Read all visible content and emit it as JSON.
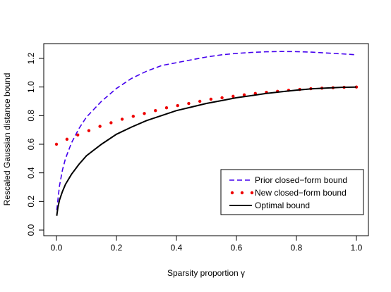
{
  "chart_data": {
    "type": "line",
    "title": "",
    "xlabel": "Sparsity proportion γ",
    "ylabel": "Rescaled Gaussian distance bound",
    "xlim": [
      0,
      1
    ],
    "ylim": [
      0,
      1.25
    ],
    "x_ticks": [
      "0.0",
      "0.2",
      "0.4",
      "0.6",
      "0.8",
      "1.0"
    ],
    "y_ticks": [
      "0.0",
      "0.2",
      "0.4",
      "0.6",
      "0.8",
      "1.0",
      "1.2"
    ],
    "grid": false,
    "legend_position": "bottom-right",
    "series": [
      {
        "name": "Prior closed−form bound",
        "style": "dashed",
        "color": "#4400ee",
        "x": [
          0.001,
          0.01,
          0.02,
          0.03,
          0.05,
          0.075,
          0.1,
          0.15,
          0.2,
          0.25,
          0.3,
          0.35,
          0.4,
          0.45,
          0.5,
          0.55,
          0.6,
          0.65,
          0.7,
          0.75,
          0.8,
          0.85,
          0.9,
          0.95,
          1.0
        ],
        "y": [
          0.14,
          0.31,
          0.42,
          0.5,
          0.61,
          0.71,
          0.79,
          0.9,
          0.99,
          1.06,
          1.11,
          1.15,
          1.17,
          1.19,
          1.21,
          1.225,
          1.235,
          1.242,
          1.246,
          1.248,
          1.247,
          1.244,
          1.238,
          1.232,
          1.225
        ]
      },
      {
        "name": "New closed−form bound",
        "style": "dotted",
        "color": "#ee0000",
        "x": [
          0.0,
          0.035,
          0.071,
          0.108,
          0.145,
          0.182,
          0.219,
          0.256,
          0.293,
          0.33,
          0.367,
          0.404,
          0.441,
          0.478,
          0.515,
          0.552,
          0.589,
          0.626,
          0.663,
          0.7,
          0.737,
          0.774,
          0.811,
          0.848,
          0.885,
          0.922,
          0.959,
          1.0
        ],
        "y": [
          0.6,
          0.635,
          0.665,
          0.695,
          0.725,
          0.75,
          0.775,
          0.795,
          0.815,
          0.835,
          0.855,
          0.87,
          0.885,
          0.9,
          0.915,
          0.925,
          0.935,
          0.945,
          0.955,
          0.963,
          0.97,
          0.977,
          0.983,
          0.988,
          0.992,
          0.995,
          0.998,
          1.0
        ]
      },
      {
        "name": "Optimal bound",
        "style": "solid",
        "color": "#000000",
        "x": [
          0.001,
          0.005,
          0.01,
          0.02,
          0.03,
          0.05,
          0.075,
          0.1,
          0.15,
          0.2,
          0.25,
          0.3,
          0.35,
          0.4,
          0.45,
          0.5,
          0.55,
          0.6,
          0.65,
          0.7,
          0.75,
          0.8,
          0.85,
          0.9,
          0.95,
          1.0
        ],
        "y": [
          0.1,
          0.16,
          0.21,
          0.27,
          0.32,
          0.39,
          0.46,
          0.52,
          0.6,
          0.67,
          0.72,
          0.765,
          0.8,
          0.835,
          0.86,
          0.885,
          0.905,
          0.925,
          0.94,
          0.955,
          0.967,
          0.978,
          0.987,
          0.993,
          0.998,
          1.0
        ]
      }
    ]
  }
}
